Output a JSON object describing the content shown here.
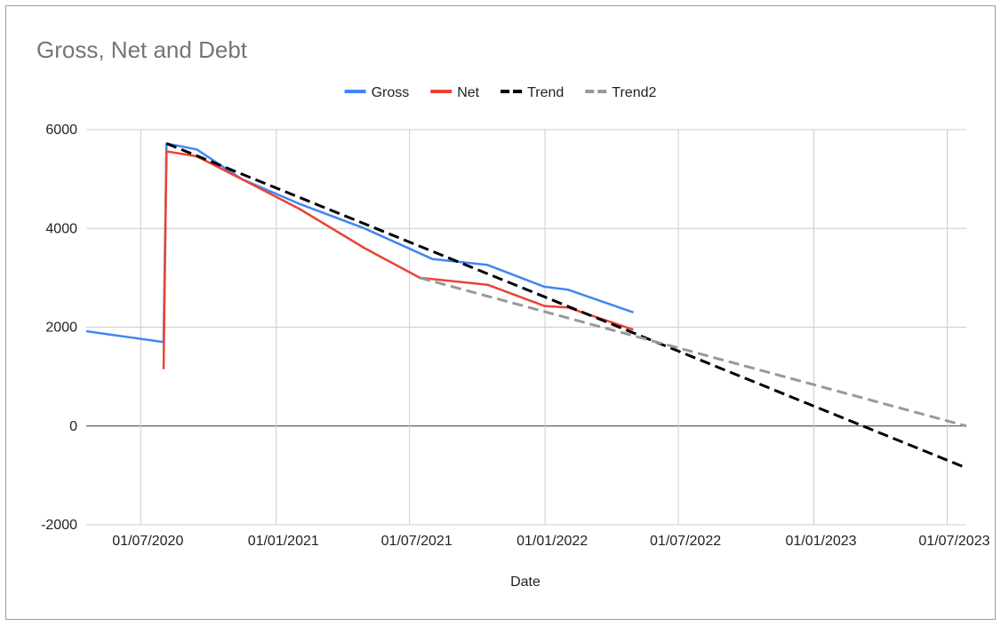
{
  "chart_data": {
    "type": "line",
    "title": "Gross, Net and Debt",
    "xlabel": "Date",
    "ylabel": "",
    "x_axis": "date",
    "xlim": [
      "2020-04-18",
      "2023-07-27"
    ],
    "ylim": [
      -2000,
      6000
    ],
    "y_ticks": [
      6000,
      4000,
      2000,
      0,
      -2000
    ],
    "x_ticks": [
      "2020-07-01",
      "2021-01-01",
      "2021-07-01",
      "2022-01-01",
      "2022-07-01",
      "2023-01-01",
      "2023-07-01"
    ],
    "x_tick_labels": [
      "01/07/2020",
      "01/01/2021",
      "01/07/2021",
      "01/01/2022",
      "01/07/2022",
      "01/01/2023",
      "01/07/2023"
    ],
    "grid": true,
    "legend_position": "top",
    "series": [
      {
        "name": "Gross",
        "color": "#4285f4",
        "style": "solid",
        "points": [
          [
            "2020-04-18",
            1920
          ],
          [
            "2020-08-01",
            1700
          ],
          [
            "2020-08-05",
            5720
          ],
          [
            "2020-09-15",
            5600
          ],
          [
            "2020-11-15",
            5000
          ],
          [
            "2021-02-01",
            4500
          ],
          [
            "2021-05-01",
            4000
          ],
          [
            "2021-08-01",
            3380
          ],
          [
            "2021-10-15",
            3260
          ],
          [
            "2021-12-31",
            2820
          ],
          [
            "2022-02-01",
            2760
          ],
          [
            "2022-05-01",
            2300
          ]
        ]
      },
      {
        "name": "Net",
        "color": "#ea4335",
        "style": "solid",
        "points": [
          [
            "2020-08-01",
            1150
          ],
          [
            "2020-08-05",
            5560
          ],
          [
            "2020-09-15",
            5460
          ],
          [
            "2020-11-15",
            5000
          ],
          [
            "2021-02-01",
            4400
          ],
          [
            "2021-05-01",
            3600
          ],
          [
            "2021-07-15",
            3000
          ],
          [
            "2021-10-15",
            2860
          ],
          [
            "2021-12-31",
            2430
          ],
          [
            "2022-02-01",
            2400
          ],
          [
            "2022-05-01",
            1950
          ]
        ]
      },
      {
        "name": "Trend",
        "color": "#000000",
        "style": "dashed",
        "points": [
          [
            "2020-08-05",
            5720
          ],
          [
            "2023-07-27",
            -850
          ]
        ]
      },
      {
        "name": "Trend2",
        "color": "#999999",
        "style": "dashed",
        "points": [
          [
            "2021-07-15",
            3000
          ],
          [
            "2023-07-27",
            0
          ]
        ]
      }
    ]
  }
}
